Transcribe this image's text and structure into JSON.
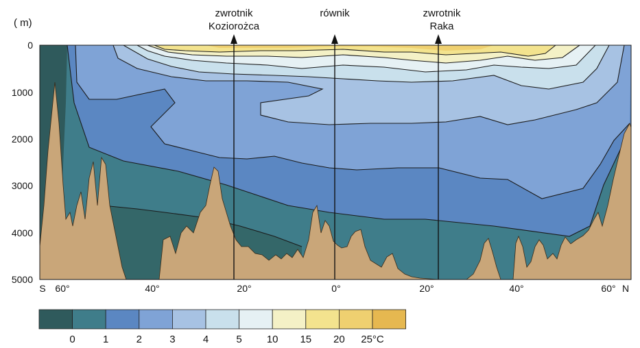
{
  "axis": {
    "unit": "( m)",
    "y_ticks": [
      "0",
      "1000",
      "2000",
      "3000",
      "4000",
      "5000"
    ],
    "x_ticks": [
      "S",
      "60°",
      "40°",
      "20°",
      "0°",
      "20°",
      "40°",
      "60°",
      "N"
    ]
  },
  "markers": [
    {
      "line1": "zwrotnik",
      "line2": "Koziorożca"
    },
    {
      "line1": "równik",
      "line2": ""
    },
    {
      "line1": "zwrotnik",
      "line2": "Raka"
    }
  ],
  "legend": {
    "labels": [
      "0",
      "1",
      "2",
      "3",
      "4",
      "5",
      "10",
      "15",
      "20",
      "25°C"
    ],
    "colors": [
      "#2f5a5c",
      "#3f7d8a",
      "#5b87c2",
      "#7fa3d6",
      "#a7c2e3",
      "#c9e0ec",
      "#e6f1f4",
      "#f4f1c6",
      "#f3e38e",
      "#efd070",
      "#e6b850"
    ]
  },
  "colors": {
    "seabed": "#c9a679",
    "isotherm_line": "#1a1a1a"
  }
}
